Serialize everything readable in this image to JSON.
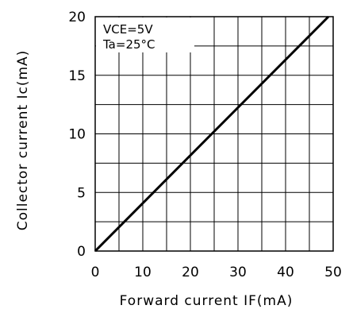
{
  "chart_data": {
    "type": "line",
    "xlabel": "Forward current IF(mA)",
    "ylabel": "Collector current Ic(mA)",
    "xlim": [
      0,
      50
    ],
    "ylim": [
      0,
      20
    ],
    "x_ticks": [
      "0",
      "10",
      "20",
      "30",
      "40",
      "50"
    ],
    "y_ticks": [
      "0",
      "5",
      "10",
      "15",
      "20"
    ],
    "grid": true,
    "annotations": [
      "VCE=5V",
      "Ta=25°C"
    ],
    "series": [
      {
        "x": [
          0,
          49
        ],
        "y": [
          0,
          20
        ]
      }
    ]
  }
}
